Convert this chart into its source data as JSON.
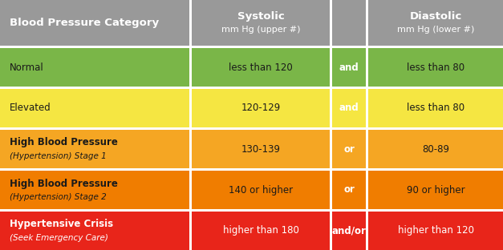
{
  "header": {
    "col0": "Blood Pressure Category",
    "col1_line1": "Systolic",
    "col1_line2": "mm Hg (upper #)",
    "col3_line1": "Diastolic",
    "col3_line2": "mm Hg (lower #)",
    "bg_color": "#999999",
    "text_color": "#ffffff"
  },
  "rows": [
    {
      "category": "Normal",
      "category_sub": "",
      "systolic": "less than 120",
      "connector": "and",
      "diastolic": "less than 80",
      "row_color": "#7ab648",
      "text_color": "#1a1a1a",
      "connector_text_color": "#ffffff"
    },
    {
      "category": "Elevated",
      "category_sub": "",
      "systolic": "120-129",
      "connector": "and",
      "diastolic": "less than 80",
      "row_color": "#f5e642",
      "text_color": "#1a1a1a",
      "connector_text_color": "#ffffff"
    },
    {
      "category": "High Blood Pressure",
      "category_sub": "(Hypertension) Stage 1",
      "systolic": "130-139",
      "connector": "or",
      "diastolic": "80-89",
      "row_color": "#f5a623",
      "text_color": "#1a1a1a",
      "connector_text_color": "#ffffff"
    },
    {
      "category": "High Blood Pressure",
      "category_sub": "(Hypertension) Stage 2",
      "systolic": "140 or higher",
      "connector": "or",
      "diastolic": "90 or higher",
      "row_color": "#f07d00",
      "text_color": "#1a1a1a",
      "connector_text_color": "#ffffff"
    },
    {
      "category": "Hypertensive Crisis",
      "category_sub": "(Seek Emergency Care)",
      "systolic": "higher than 180",
      "connector": "and/or",
      "diastolic": "higher than 120",
      "row_color": "#e8251a",
      "text_color": "#ffffff",
      "connector_text_color": "#ffffff"
    }
  ],
  "figsize": [
    6.27,
    3.12
  ],
  "dpi": 100,
  "bg_color": "#ffffff",
  "border_color": "#ffffff",
  "border_width": 3
}
